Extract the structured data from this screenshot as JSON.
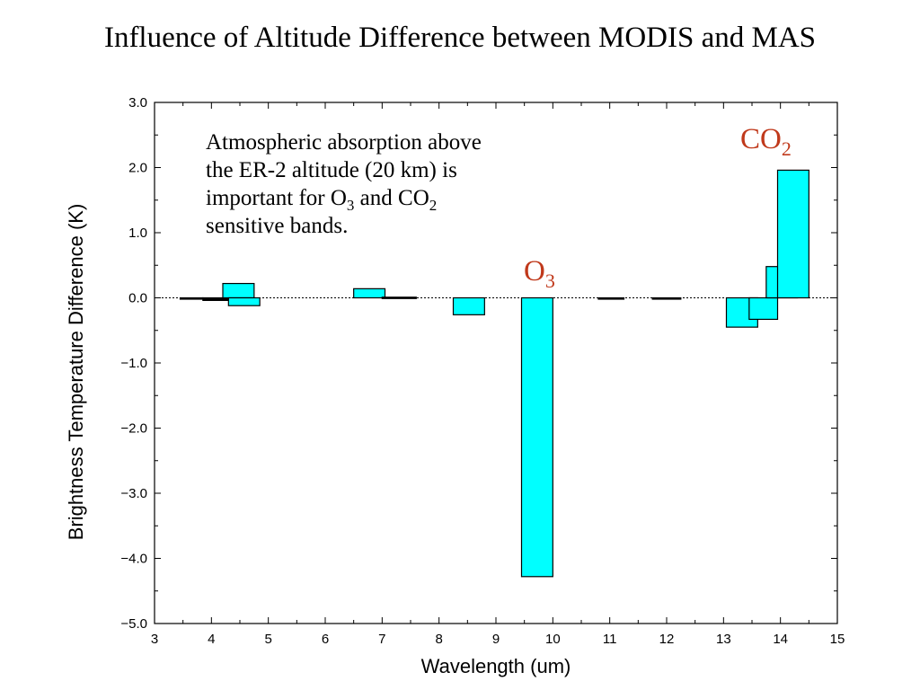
{
  "title": "Influence of Altitude Difference between MODIS and MAS",
  "chart_data": {
    "type": "bar",
    "xlabel": "Wavelength (um)",
    "ylabel": "Brightness Temperature Difference (K)",
    "xlim": [
      3,
      15
    ],
    "ylim": [
      -5,
      3
    ],
    "x_ticks": [
      "3",
      "4",
      "5",
      "6",
      "7",
      "8",
      "9",
      "10",
      "11",
      "12",
      "13",
      "14",
      "15"
    ],
    "y_ticks": [
      "3.0",
      "2.0",
      "1.0",
      "0.0",
      "−1.0",
      "−2.0",
      "−3.0",
      "−4.0",
      "−5.0"
    ],
    "zero_line": "dotted",
    "bar_color": "#00ffff",
    "bars": [
      {
        "x0": 3.45,
        "x1": 3.85,
        "value": -0.02
      },
      {
        "x0": 3.85,
        "x1": 4.35,
        "value": -0.04
      },
      {
        "x0": 4.2,
        "x1": 4.75,
        "value": 0.22
      },
      {
        "x0": 4.3,
        "x1": 4.85,
        "value": -0.12
      },
      {
        "x0": 6.5,
        "x1": 7.05,
        "value": 0.14
      },
      {
        "x0": 7.0,
        "x1": 7.6,
        "value": 0.01
      },
      {
        "x0": 8.25,
        "x1": 8.8,
        "value": -0.26
      },
      {
        "x0": 9.45,
        "x1": 10.0,
        "value": -4.28
      },
      {
        "x0": 10.8,
        "x1": 11.25,
        "value": 0.0
      },
      {
        "x0": 11.75,
        "x1": 12.25,
        "value": -0.02
      },
      {
        "x0": 13.05,
        "x1": 13.6,
        "value": -0.45
      },
      {
        "x0": 13.45,
        "x1": 13.95,
        "value": -0.33
      },
      {
        "x0": 13.75,
        "x1": 14.3,
        "value": 0.48
      },
      {
        "x0": 13.95,
        "x1": 14.5,
        "value": 1.96
      }
    ],
    "annotations": {
      "note_lines": [
        {
          "parts": [
            {
              "text": "Atmospheric absorption above"
            }
          ]
        },
        {
          "parts": [
            {
              "text": "the ER-2 altitude (20 km) is"
            }
          ]
        },
        {
          "parts": [
            {
              "text": "important for O"
            },
            {
              "text": "3",
              "sub": true
            },
            {
              "text": " and CO"
            },
            {
              "text": "2",
              "sub": true
            }
          ]
        },
        {
          "parts": [
            {
              "text": "sensitive bands."
            }
          ]
        }
      ],
      "o3": {
        "main": "O",
        "sub": "3"
      },
      "co2": {
        "main": "CO",
        "sub": "2"
      }
    }
  }
}
